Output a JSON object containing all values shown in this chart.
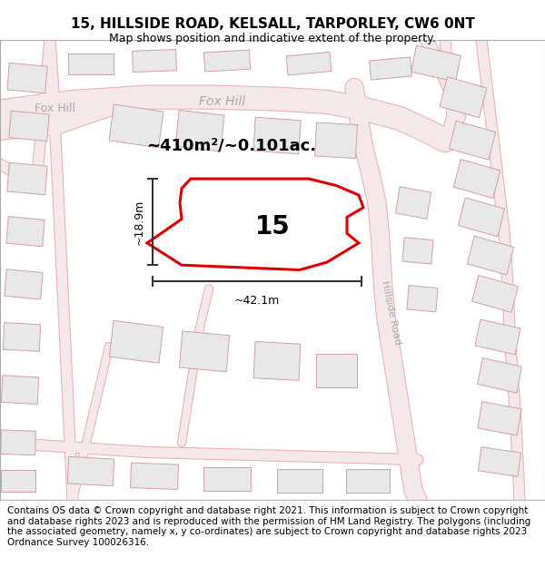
{
  "title": "15, HILLSIDE ROAD, KELSALL, TARPORLEY, CW6 0NT",
  "subtitle": "Map shows position and indicative extent of the property.",
  "footer": "Contains OS data © Crown copyright and database right 2021. This information is subject to Crown copyright and database rights 2023 and is reproduced with the permission of HM Land Registry. The polygons (including the associated geometry, namely x, y co-ordinates) are subject to Crown copyright and database rights 2023 Ordnance Survey 100026316.",
  "area_label": "~410m²/~0.101ac.",
  "number_label": "15",
  "dim_width": "~42.1m",
  "dim_height": "~18.9m",
  "road_label": "Hillside Road",
  "fox_hill_label_left": "Fox Hill",
  "fox_hill_label_center": "Fox Hill",
  "map_bg": "#ffffff",
  "road_fill": "#f5e8e8",
  "road_edge": "#e8b0b0",
  "building_fill": "#e8e8e8",
  "building_edge": "#d0a0a0",
  "plot_color": "#dd0000",
  "dim_color": "#333333",
  "label_color": "#aaaaaa",
  "title_fontsize": 11,
  "subtitle_fontsize": 9,
  "footer_fontsize": 7.5
}
